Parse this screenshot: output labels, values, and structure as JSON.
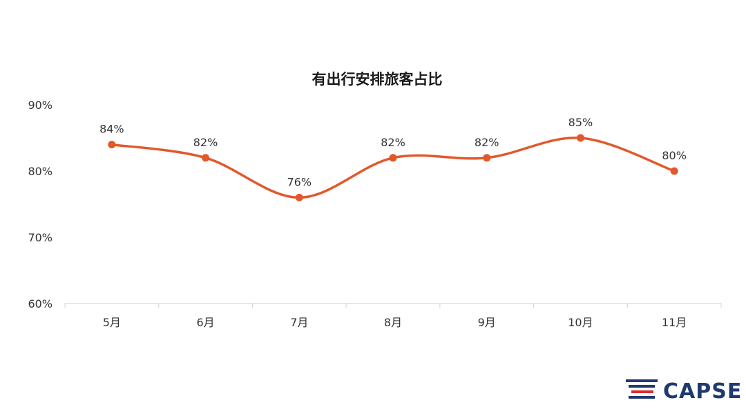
{
  "chart_data": {
    "type": "line",
    "title": "有出行安排旅客占比",
    "categories": [
      "5月",
      "6月",
      "7月",
      "8月",
      "9月",
      "10月",
      "11月"
    ],
    "series": [
      {
        "values": [
          84,
          82,
          76,
          82,
          82,
          85,
          80
        ],
        "labels": [
          "84%",
          "82%",
          "76%",
          "82%",
          "82%",
          "85%",
          "80%"
        ],
        "color": "#e2582b"
      }
    ],
    "yticks": [
      "60%",
      "70%",
      "80%",
      "90%"
    ],
    "ylim": [
      60,
      90
    ],
    "ytick_values": [
      60,
      70,
      80,
      90
    ],
    "grid": false,
    "legend": "none"
  },
  "logo": {
    "text": "CAPSE",
    "colors": {
      "blue": "#1f3a6e",
      "red": "#d62d2d"
    }
  }
}
